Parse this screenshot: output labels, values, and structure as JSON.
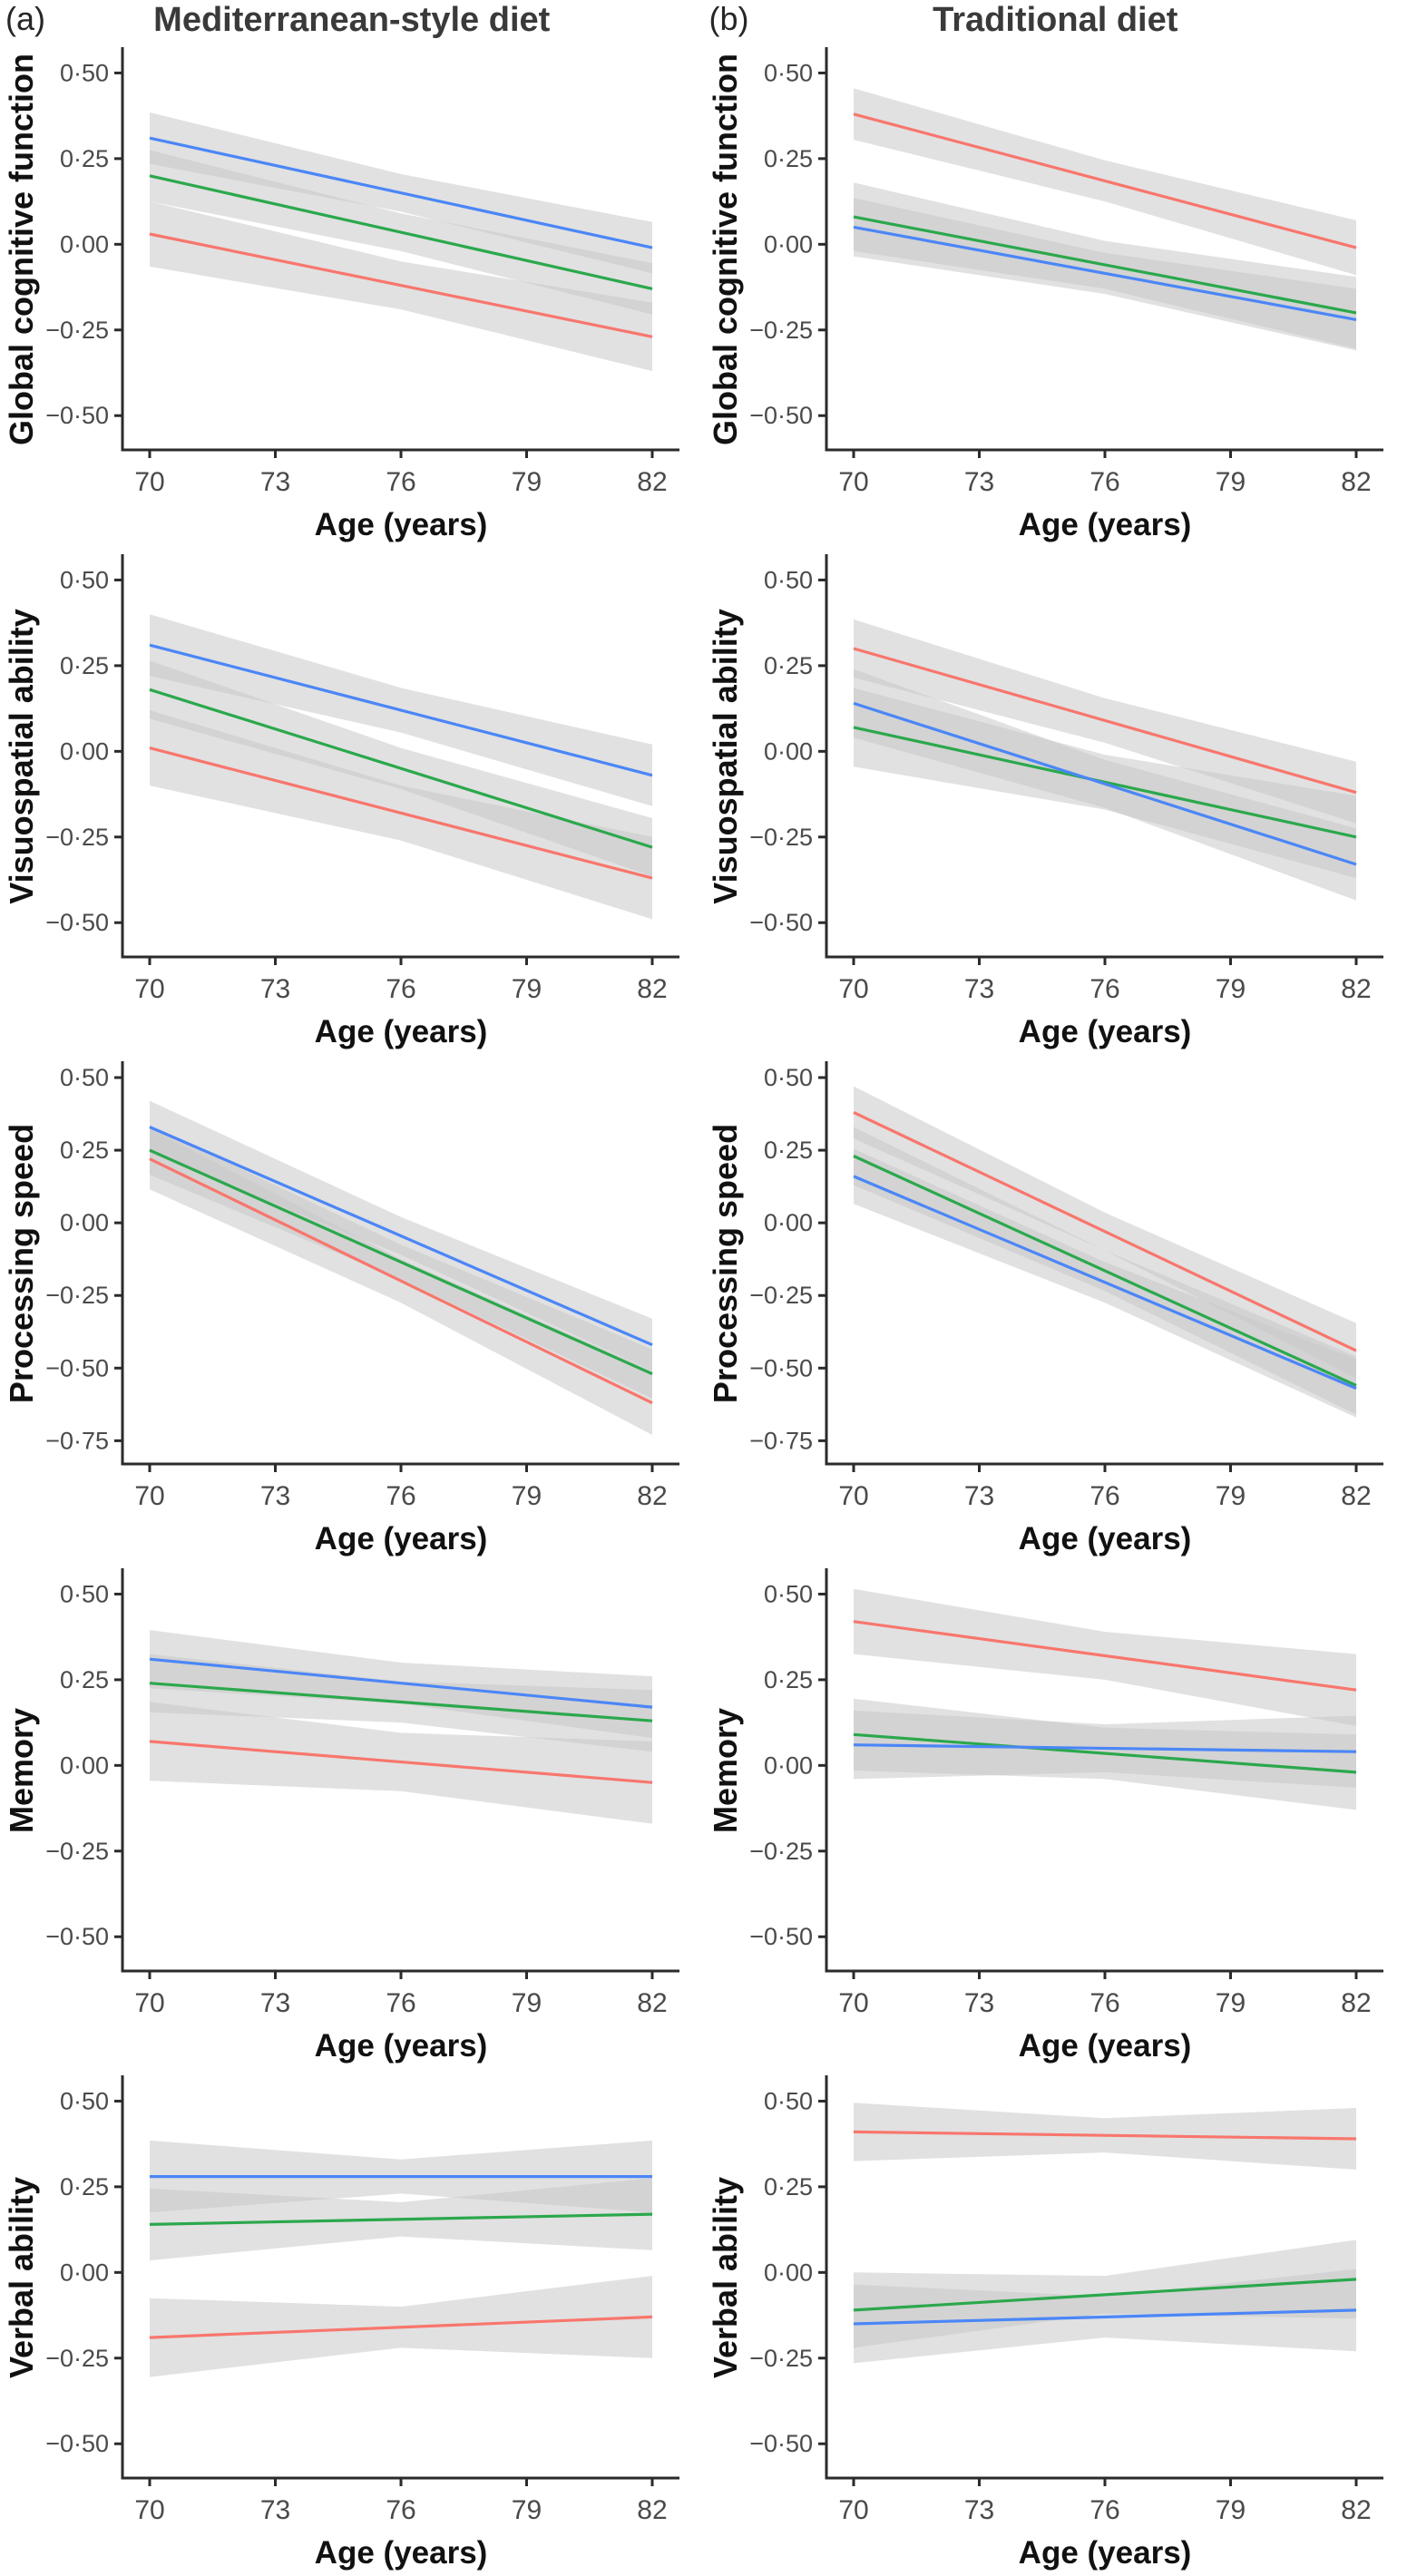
{
  "figure": {
    "panels_header": {
      "a_label": "(a)",
      "a_title": "Mediterranean-style diet",
      "b_label": "(b)",
      "b_title": "Traditional diet"
    },
    "xlabel": "Age (years)",
    "x_ticks": [
      {
        "v": 70,
        "label": "70"
      },
      {
        "v": 73,
        "label": "73"
      },
      {
        "v": 76,
        "label": "76"
      },
      {
        "v": 79,
        "label": "79"
      },
      {
        "v": 82,
        "label": "82"
      }
    ],
    "colors": {
      "red": "#F8766D",
      "green": "#2BA84C",
      "blue": "#4B86F7",
      "band": "#C9C9C9",
      "axis": "#2B2B2B",
      "tick_text": "#4A4A4A",
      "label_text": "#111111"
    }
  },
  "chart_data": [
    {
      "type": "line",
      "panel": "a",
      "column_title": "Mediterranean-style diet",
      "ylabel": "Global cognitive function",
      "xlabel": "Age (years)",
      "x": [
        70,
        82
      ],
      "ylim": [
        0.57,
        -0.6
      ],
      "yticks": [
        {
          "v": 0.5,
          "label": "0·50"
        },
        {
          "v": 0.25,
          "label": "0·25"
        },
        {
          "v": 0,
          "label": "0·00"
        },
        {
          "v": -0.25,
          "label": "−0·25"
        },
        {
          "v": -0.5,
          "label": "−0·50"
        }
      ],
      "series": [
        {
          "color": "red",
          "y": [
            0.03,
            -0.27
          ],
          "band": [
            0.095,
            0.07,
            0.1
          ]
        },
        {
          "color": "green",
          "y": [
            0.2,
            -0.13
          ],
          "band": [
            0.075,
            0.055,
            0.075
          ]
        },
        {
          "color": "blue",
          "y": [
            0.31,
            -0.01
          ],
          "band": [
            0.075,
            0.055,
            0.075
          ]
        }
      ]
    },
    {
      "type": "line",
      "panel": "b",
      "column_title": "Traditional diet",
      "ylabel": "Global cognitive function",
      "xlabel": "Age (years)",
      "x": [
        70,
        82
      ],
      "ylim": [
        0.57,
        -0.6
      ],
      "yticks": [
        {
          "v": 0.5,
          "label": "0·50"
        },
        {
          "v": 0.25,
          "label": "0·25"
        },
        {
          "v": 0,
          "label": "0·00"
        },
        {
          "v": -0.25,
          "label": "−0·25"
        },
        {
          "v": -0.5,
          "label": "−0·50"
        }
      ],
      "series": [
        {
          "color": "red",
          "y": [
            0.38,
            -0.01
          ],
          "band": [
            0.075,
            0.06,
            0.08
          ]
        },
        {
          "color": "green",
          "y": [
            0.08,
            -0.2
          ],
          "band": [
            0.1,
            0.07,
            0.105
          ]
        },
        {
          "color": "blue",
          "y": [
            0.05,
            -0.22
          ],
          "band": [
            0.085,
            0.06,
            0.09
          ]
        }
      ]
    },
    {
      "type": "line",
      "panel": "a",
      "column_title": "Mediterranean-style diet",
      "ylabel": "Visuospatial ability",
      "xlabel": "Age (years)",
      "x": [
        70,
        82
      ],
      "ylim": [
        0.57,
        -0.6
      ],
      "yticks": [
        {
          "v": 0.5,
          "label": "0·50"
        },
        {
          "v": 0.25,
          "label": "0·25"
        },
        {
          "v": 0,
          "label": "0·00"
        },
        {
          "v": -0.25,
          "label": "−0·25"
        },
        {
          "v": -0.5,
          "label": "−0·50"
        }
      ],
      "series": [
        {
          "color": "red",
          "y": [
            0.01,
            -0.37
          ],
          "band": [
            0.11,
            0.08,
            0.12
          ]
        },
        {
          "color": "green",
          "y": [
            0.18,
            -0.28
          ],
          "band": [
            0.085,
            0.06,
            0.085
          ]
        },
        {
          "color": "blue",
          "y": [
            0.31,
            -0.07
          ],
          "band": [
            0.09,
            0.065,
            0.09
          ]
        }
      ]
    },
    {
      "type": "line",
      "panel": "b",
      "column_title": "Traditional diet",
      "ylabel": "Visuospatial ability",
      "xlabel": "Age (years)",
      "x": [
        70,
        82
      ],
      "ylim": [
        0.57,
        -0.6
      ],
      "yticks": [
        {
          "v": 0.5,
          "label": "0·50"
        },
        {
          "v": 0.25,
          "label": "0·25"
        },
        {
          "v": 0,
          "label": "0·00"
        },
        {
          "v": -0.25,
          "label": "−0·25"
        },
        {
          "v": -0.5,
          "label": "−0·50"
        }
      ],
      "series": [
        {
          "color": "red",
          "y": [
            0.3,
            -0.12
          ],
          "band": [
            0.085,
            0.065,
            0.09
          ]
        },
        {
          "color": "green",
          "y": [
            0.07,
            -0.25
          ],
          "band": [
            0.115,
            0.08,
            0.12
          ]
        },
        {
          "color": "blue",
          "y": [
            0.14,
            -0.33
          ],
          "band": [
            0.1,
            0.07,
            0.105
          ]
        }
      ]
    },
    {
      "type": "line",
      "panel": "a",
      "column_title": "Mediterranean-style diet",
      "ylabel": "Processing speed",
      "xlabel": "Age (years)",
      "x": [
        70,
        82
      ],
      "ylim": [
        0.55,
        -0.83
      ],
      "yticks": [
        {
          "v": 0.5,
          "label": "0·50"
        },
        {
          "v": 0.25,
          "label": "0·25"
        },
        {
          "v": 0,
          "label": "0·00"
        },
        {
          "v": -0.25,
          "label": "−0·25"
        },
        {
          "v": -0.5,
          "label": "−0·50"
        },
        {
          "v": -0.75,
          "label": "−0·75"
        }
      ],
      "series": [
        {
          "color": "red",
          "y": [
            0.22,
            -0.62
          ],
          "band": [
            0.105,
            0.075,
            0.11
          ]
        },
        {
          "color": "green",
          "y": [
            0.25,
            -0.52
          ],
          "band": [
            0.085,
            0.06,
            0.085
          ]
        },
        {
          "color": "blue",
          "y": [
            0.33,
            -0.42
          ],
          "band": [
            0.09,
            0.065,
            0.09
          ]
        }
      ]
    },
    {
      "type": "line",
      "panel": "b",
      "column_title": "Traditional diet",
      "ylabel": "Processing speed",
      "xlabel": "Age (years)",
      "x": [
        70,
        82
      ],
      "ylim": [
        0.55,
        -0.83
      ],
      "yticks": [
        {
          "v": 0.5,
          "label": "0·50"
        },
        {
          "v": 0.25,
          "label": "0·25"
        },
        {
          "v": 0,
          "label": "0·00"
        },
        {
          "v": -0.25,
          "label": "−0·25"
        },
        {
          "v": -0.5,
          "label": "−0·50"
        },
        {
          "v": -0.75,
          "label": "−0·75"
        }
      ],
      "series": [
        {
          "color": "red",
          "y": [
            0.38,
            -0.44
          ],
          "band": [
            0.09,
            0.065,
            0.095
          ]
        },
        {
          "color": "green",
          "y": [
            0.23,
            -0.56
          ],
          "band": [
            0.1,
            0.07,
            0.1
          ]
        },
        {
          "color": "blue",
          "y": [
            0.16,
            -0.57
          ],
          "band": [
            0.095,
            0.07,
            0.1
          ]
        }
      ]
    },
    {
      "type": "line",
      "panel": "a",
      "column_title": "Mediterranean-style diet",
      "ylabel": "Memory",
      "xlabel": "Age (years)",
      "x": [
        70,
        82
      ],
      "ylim": [
        0.57,
        -0.6
      ],
      "yticks": [
        {
          "v": 0.5,
          "label": "0·50"
        },
        {
          "v": 0.25,
          "label": "0·25"
        },
        {
          "v": 0,
          "label": "0·00"
        },
        {
          "v": -0.25,
          "label": "−0·25"
        },
        {
          "v": -0.5,
          "label": "−0·50"
        }
      ],
      "series": [
        {
          "color": "red",
          "y": [
            0.07,
            -0.05
          ],
          "band": [
            0.115,
            0.085,
            0.12
          ]
        },
        {
          "color": "green",
          "y": [
            0.24,
            0.13
          ],
          "band": [
            0.085,
            0.06,
            0.09
          ]
        },
        {
          "color": "blue",
          "y": [
            0.31,
            0.17
          ],
          "band": [
            0.085,
            0.06,
            0.09
          ]
        }
      ]
    },
    {
      "type": "line",
      "panel": "b",
      "column_title": "Traditional diet",
      "ylabel": "Memory",
      "xlabel": "Age (years)",
      "x": [
        70,
        82
      ],
      "ylim": [
        0.57,
        -0.6
      ],
      "yticks": [
        {
          "v": 0.5,
          "label": "0·50"
        },
        {
          "v": 0.25,
          "label": "0·25"
        },
        {
          "v": 0,
          "label": "0·00"
        },
        {
          "v": -0.25,
          "label": "−0·25"
        },
        {
          "v": -0.5,
          "label": "−0·50"
        }
      ],
      "series": [
        {
          "color": "red",
          "y": [
            0.42,
            0.22
          ],
          "band": [
            0.095,
            0.07,
            0.105
          ]
        },
        {
          "color": "green",
          "y": [
            0.09,
            -0.02
          ],
          "band": [
            0.105,
            0.075,
            0.11
          ]
        },
        {
          "color": "blue",
          "y": [
            0.06,
            0.04
          ],
          "band": [
            0.1,
            0.07,
            0.105
          ]
        }
      ]
    },
    {
      "type": "line",
      "panel": "a",
      "column_title": "Mediterranean-style diet",
      "ylabel": "Verbal ability",
      "xlabel": "Age (years)",
      "x": [
        70,
        82
      ],
      "ylim": [
        0.57,
        -0.6
      ],
      "yticks": [
        {
          "v": 0.5,
          "label": "0·50"
        },
        {
          "v": 0.25,
          "label": "0·25"
        },
        {
          "v": 0,
          "label": "0·00"
        },
        {
          "v": -0.25,
          "label": "−0·25"
        },
        {
          "v": -0.5,
          "label": "−0·50"
        }
      ],
      "series": [
        {
          "color": "red",
          "y": [
            -0.19,
            -0.13
          ],
          "band": [
            0.115,
            0.06,
            0.12
          ]
        },
        {
          "color": "green",
          "y": [
            0.14,
            0.17
          ],
          "band": [
            0.105,
            0.05,
            0.105
          ]
        },
        {
          "color": "blue",
          "y": [
            0.28,
            0.28
          ],
          "band": [
            0.105,
            0.05,
            0.105
          ]
        }
      ]
    },
    {
      "type": "line",
      "panel": "b",
      "column_title": "Traditional diet",
      "ylabel": "Verbal ability",
      "xlabel": "Age (years)",
      "x": [
        70,
        82
      ],
      "ylim": [
        0.57,
        -0.6
      ],
      "yticks": [
        {
          "v": 0.5,
          "label": "0·50"
        },
        {
          "v": 0.25,
          "label": "0·25"
        },
        {
          "v": 0,
          "label": "0·00"
        },
        {
          "v": -0.25,
          "label": "−0·25"
        },
        {
          "v": -0.5,
          "label": "−0·50"
        }
      ],
      "series": [
        {
          "color": "red",
          "y": [
            0.41,
            0.39
          ],
          "band": [
            0.085,
            0.05,
            0.09
          ]
        },
        {
          "color": "green",
          "y": [
            -0.11,
            -0.02
          ],
          "band": [
            0.11,
            0.055,
            0.115
          ]
        },
        {
          "color": "blue",
          "y": [
            -0.15,
            -0.11
          ],
          "band": [
            0.115,
            0.06,
            0.12
          ]
        }
      ]
    }
  ]
}
